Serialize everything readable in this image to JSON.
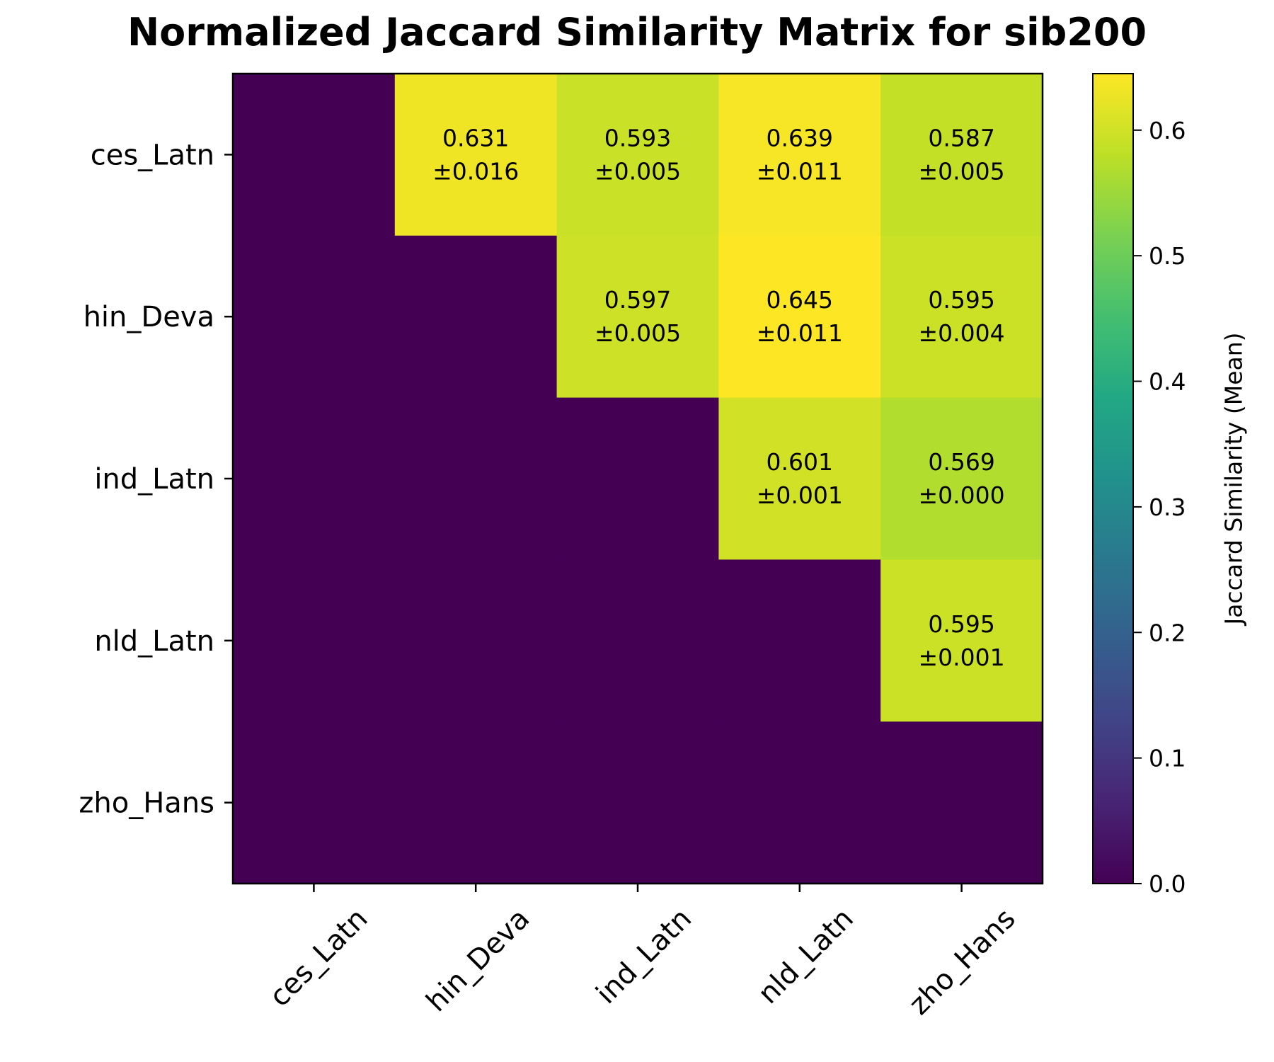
{
  "chart_data": {
    "type": "heatmap",
    "title": "Normalized Jaccard Similarity Matrix for sib200",
    "rows": [
      "ces_Latn",
      "hin_Deva",
      "ind_Latn",
      "nld_Latn",
      "zho_Hans"
    ],
    "cols": [
      "ces_Latn",
      "hin_Deva",
      "ind_Latn",
      "nld_Latn",
      "zho_Hans"
    ],
    "values": [
      [
        0,
        0.631,
        0.593,
        0.639,
        0.587
      ],
      [
        0,
        0,
        0.597,
        0.645,
        0.595
      ],
      [
        0,
        0,
        0,
        0.601,
        0.569
      ],
      [
        0,
        0,
        0,
        0,
        0.595
      ],
      [
        0,
        0,
        0,
        0,
        0
      ]
    ],
    "labels": [
      [
        null,
        [
          "0.631",
          "±0.016"
        ],
        [
          "0.593",
          "±0.005"
        ],
        [
          "0.639",
          "±0.011"
        ],
        [
          "0.587",
          "±0.005"
        ]
      ],
      [
        null,
        null,
        [
          "0.597",
          "±0.005"
        ],
        [
          "0.645",
          "±0.011"
        ],
        [
          "0.595",
          "±0.004"
        ]
      ],
      [
        null,
        null,
        null,
        [
          "0.601",
          "±0.001"
        ],
        [
          "0.569",
          "±0.000"
        ]
      ],
      [
        null,
        null,
        null,
        null,
        [
          "0.595",
          "±0.001"
        ]
      ],
      [
        null,
        null,
        null,
        null,
        null
      ]
    ],
    "colorbar": {
      "label": "Jaccard Similarity (Mean)",
      "range": [
        0,
        0.645
      ],
      "ticks": [
        "0.0",
        "0.1",
        "0.2",
        "0.3",
        "0.4",
        "0.5",
        "0.6"
      ],
      "tick_values": [
        0,
        0.1,
        0.2,
        0.3,
        0.4,
        0.5,
        0.6
      ],
      "colormap": "viridis"
    },
    "grid": false
  }
}
